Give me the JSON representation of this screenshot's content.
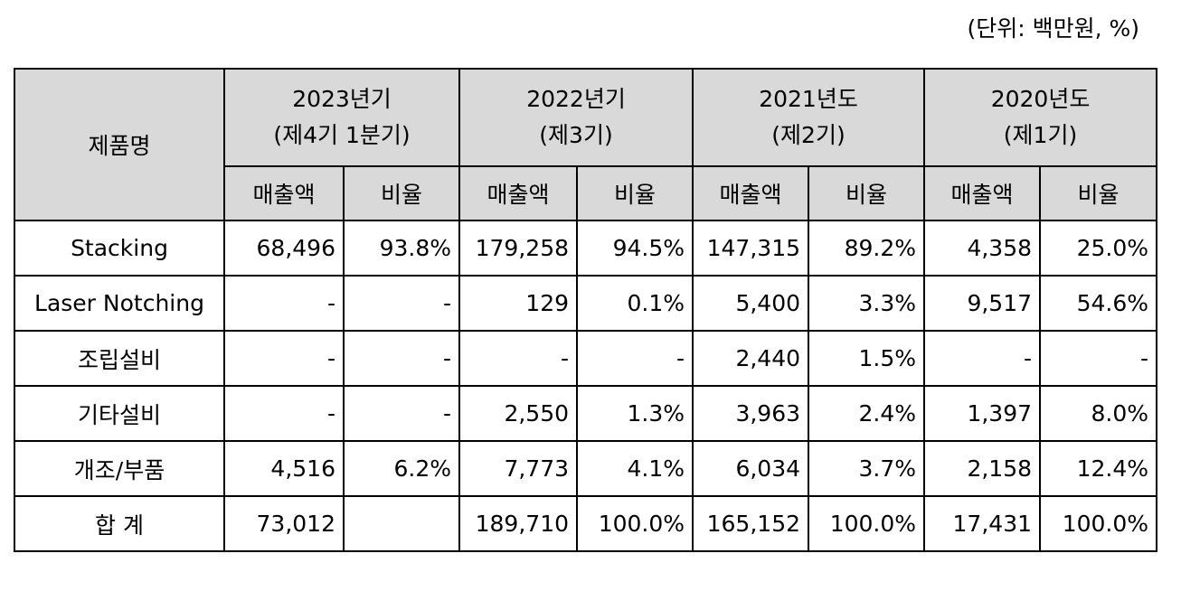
{
  "unit_note": "(단위: 백만원, %)",
  "header": {
    "product_col": "제품명",
    "periods": [
      {
        "line1": "2023년기",
        "line2": "(제4기 1분기)"
      },
      {
        "line1": "2022년기",
        "line2": "(제3기)"
      },
      {
        "line1": "2021년도",
        "line2": "(제2기)"
      },
      {
        "line1": "2020년도",
        "line2": "(제1기)"
      }
    ],
    "sub_sales": "매출액",
    "sub_ratio": "비율"
  },
  "rows": [
    {
      "name": "Stacking",
      "cells": [
        "68,496",
        "93.8%",
        "179,258",
        "94.5%",
        "147,315",
        "89.2%",
        "4,358",
        "25.0%"
      ]
    },
    {
      "name": "Laser Notching",
      "cells": [
        "-",
        "-",
        "129",
        "0.1%",
        "5,400",
        "3.3%",
        "9,517",
        "54.6%"
      ]
    },
    {
      "name": "조립설비",
      "cells": [
        "-",
        "-",
        "-",
        "-",
        "2,440",
        "1.5%",
        "-",
        "-"
      ]
    },
    {
      "name": "기타설비",
      "cells": [
        "-",
        "-",
        "2,550",
        "1.3%",
        "3,963",
        "2.4%",
        "1,397",
        "8.0%"
      ]
    },
    {
      "name": "개조/부품",
      "cells": [
        "4,516",
        "6.2%",
        "7,773",
        "4.1%",
        "6,034",
        "3.7%",
        "2,158",
        "12.4%"
      ]
    },
    {
      "name": "합 계",
      "cells": [
        "73,012",
        "",
        "189,710",
        "100.0%",
        "165,152",
        "100.0%",
        "17,431",
        "100.0%"
      ]
    }
  ]
}
